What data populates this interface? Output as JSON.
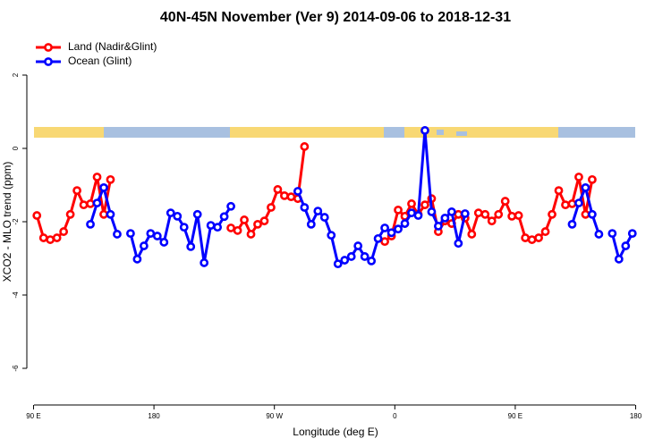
{
  "chart_data": {
    "type": "line",
    "title": "40N-45N November (Ver 9)   2014-09-06 to 2018-12-31",
    "x_label": "Longitude (deg E)",
    "y_label": "XCO2 - MLO trend (ppm)",
    "x": [
      92.5,
      97.5,
      102.5,
      107.5,
      112.5,
      117.5,
      122.5,
      127.5,
      132.5,
      137.5,
      142.5,
      147.5,
      152.5,
      157.5,
      162.5,
      167.5,
      172.5,
      177.5,
      182.5,
      187.5,
      192.5,
      197.5,
      202.5,
      207.5,
      212.5,
      217.5,
      222.5,
      227.5,
      232.5,
      237.5,
      242.5,
      247.5,
      252.5,
      257.5,
      262.5,
      267.5,
      272.5,
      277.5,
      282.5,
      287.5,
      292.5,
      297.5,
      302.5,
      307.5,
      312.5,
      317.5,
      322.5,
      327.5,
      332.5,
      337.5,
      342.5,
      347.5,
      352.5,
      357.5,
      362.5,
      367.5,
      372.5,
      377.5,
      382.5,
      387.5,
      392.5,
      397.5,
      402.5,
      407.5,
      412.5,
      417.5,
      422.5,
      427.5,
      432.5,
      437.5,
      442.5,
      447.5,
      452.5,
      457.5,
      462.5,
      467.5,
      472.5,
      477.5,
      482.5,
      487.5,
      492.5,
      497.5,
      502.5,
      507.5,
      512.5,
      517.5,
      522.5,
      527.5,
      532.5,
      537.5
    ],
    "series": [
      {
        "name": "Land (Nadir&Glint)",
        "color": "#ff0000",
        "values": [
          -1.83,
          -2.44,
          -2.49,
          -2.44,
          -2.27,
          -1.8,
          -1.15,
          -1.54,
          -1.51,
          -0.78,
          -1.8,
          -0.85,
          null,
          null,
          null,
          null,
          null,
          null,
          null,
          null,
          null,
          null,
          null,
          null,
          null,
          null,
          null,
          null,
          null,
          -2.17,
          -2.24,
          -1.95,
          -2.34,
          -2.07,
          -1.98,
          -1.61,
          -1.12,
          -1.29,
          -1.32,
          -1.37,
          0.05,
          null,
          null,
          null,
          null,
          null,
          null,
          null,
          null,
          null,
          null,
          null,
          -2.54,
          -2.39,
          -1.68,
          -1.85,
          -1.51,
          -1.8,
          -1.54,
          -1.37,
          -2.27,
          -1.98,
          -2.05,
          -1.8,
          -1.9,
          -2.34,
          -1.76,
          -1.8,
          -1.98,
          -1.8,
          -1.44,
          -1.85,
          -1.83,
          -2.44,
          -2.49,
          -2.44,
          -2.27,
          -1.8,
          -1.15,
          -1.54,
          -1.51,
          -0.78,
          -1.8,
          -0.85,
          null,
          null,
          null,
          null,
          null,
          null
        ]
      },
      {
        "name": "Ocean (Glint)",
        "color": "#0000ff",
        "values": [
          null,
          null,
          null,
          null,
          null,
          null,
          null,
          null,
          -2.07,
          -1.49,
          -1.07,
          -1.8,
          -2.34,
          null,
          -2.32,
          -3.02,
          -2.66,
          -2.32,
          -2.39,
          -2.56,
          -1.76,
          -1.85,
          -2.15,
          -2.68,
          -1.8,
          -3.12,
          -2.1,
          -2.15,
          -1.86,
          -1.58,
          null,
          null,
          null,
          null,
          null,
          null,
          null,
          null,
          null,
          -1.17,
          -1.61,
          -2.07,
          -1.71,
          -1.88,
          -2.37,
          -3.15,
          -3.05,
          -2.95,
          -2.66,
          -2.95,
          -3.07,
          -2.46,
          -2.17,
          -2.3,
          -2.2,
          -2.05,
          -1.76,
          -1.83,
          0.49,
          -1.73,
          -2.12,
          -1.9,
          -1.73,
          -2.59,
          -1.78,
          null,
          null,
          null,
          null,
          null,
          null,
          null,
          null,
          null,
          null,
          null,
          null,
          null,
          null,
          null,
          -2.07,
          -1.49,
          -1.07,
          -1.8,
          -2.34,
          null,
          -2.32,
          -3.02,
          -2.66,
          -2.32
        ]
      }
    ],
    "xlim": [
      85,
      545
    ],
    "xticks": [
      {
        "value": 90,
        "label": "90 E"
      },
      180,
      {
        "value": 270,
        "label": "90 W"
      },
      {
        "value": 360,
        "label": "0"
      },
      {
        "value": 450,
        "label": "90 E"
      },
      {
        "value": 540,
        "label": "180"
      }
    ],
    "ylim": [
      -7,
      3
    ],
    "yticks": [
      -6,
      -4,
      -2,
      0,
      2
    ],
    "grid": false,
    "legend": "top-left"
  }
}
